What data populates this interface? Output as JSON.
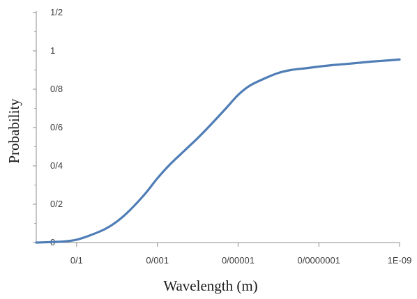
{
  "chart_data": {
    "type": "line",
    "title": "",
    "xlabel": "Wavelength (m)",
    "ylabel": "Probability",
    "x_tick_labels": [
      "0/1",
      "0/001",
      "0/00001",
      "0/0000001",
      "1E-09"
    ],
    "x_ticks_wavelength_m": [
      0.1,
      0.001,
      1e-05,
      1e-07,
      1e-09
    ],
    "y_tick_labels": [
      "0",
      "0/2",
      "0/4",
      "0/6",
      "0/8",
      "1",
      "1/2"
    ],
    "y_ticks": [
      0,
      0.2,
      0.4,
      0.6,
      0.8,
      1.0,
      1.2
    ],
    "ylim": [
      0,
      1.2
    ],
    "x_scale": "log, decreasing wavelength to the right",
    "xlim_wavelength_m": [
      1,
      1e-09
    ],
    "grid": false,
    "legend": "none",
    "line_color": "#4f7db5",
    "series": [
      {
        "x": [
          1,
          0.5,
          0.2,
          0.1,
          0.05,
          0.02,
          0.01,
          0.005,
          0.002,
          0.001,
          0.0005,
          0.0002,
          0.0001,
          5e-05,
          2e-05,
          1e-05,
          5e-06,
          2e-06,
          1e-06,
          5e-07,
          2e-07,
          1e-07,
          5e-08,
          2e-08,
          1e-08,
          5e-09,
          2e-09,
          1e-09
        ],
        "values": [
          0.0,
          0.002,
          0.006,
          0.015,
          0.035,
          0.07,
          0.11,
          0.165,
          0.255,
          0.335,
          0.405,
          0.485,
          0.545,
          0.61,
          0.7,
          0.77,
          0.82,
          0.86,
          0.885,
          0.9,
          0.91,
          0.918,
          0.925,
          0.932,
          0.938,
          0.944,
          0.95,
          0.955
        ]
      }
    ]
  }
}
